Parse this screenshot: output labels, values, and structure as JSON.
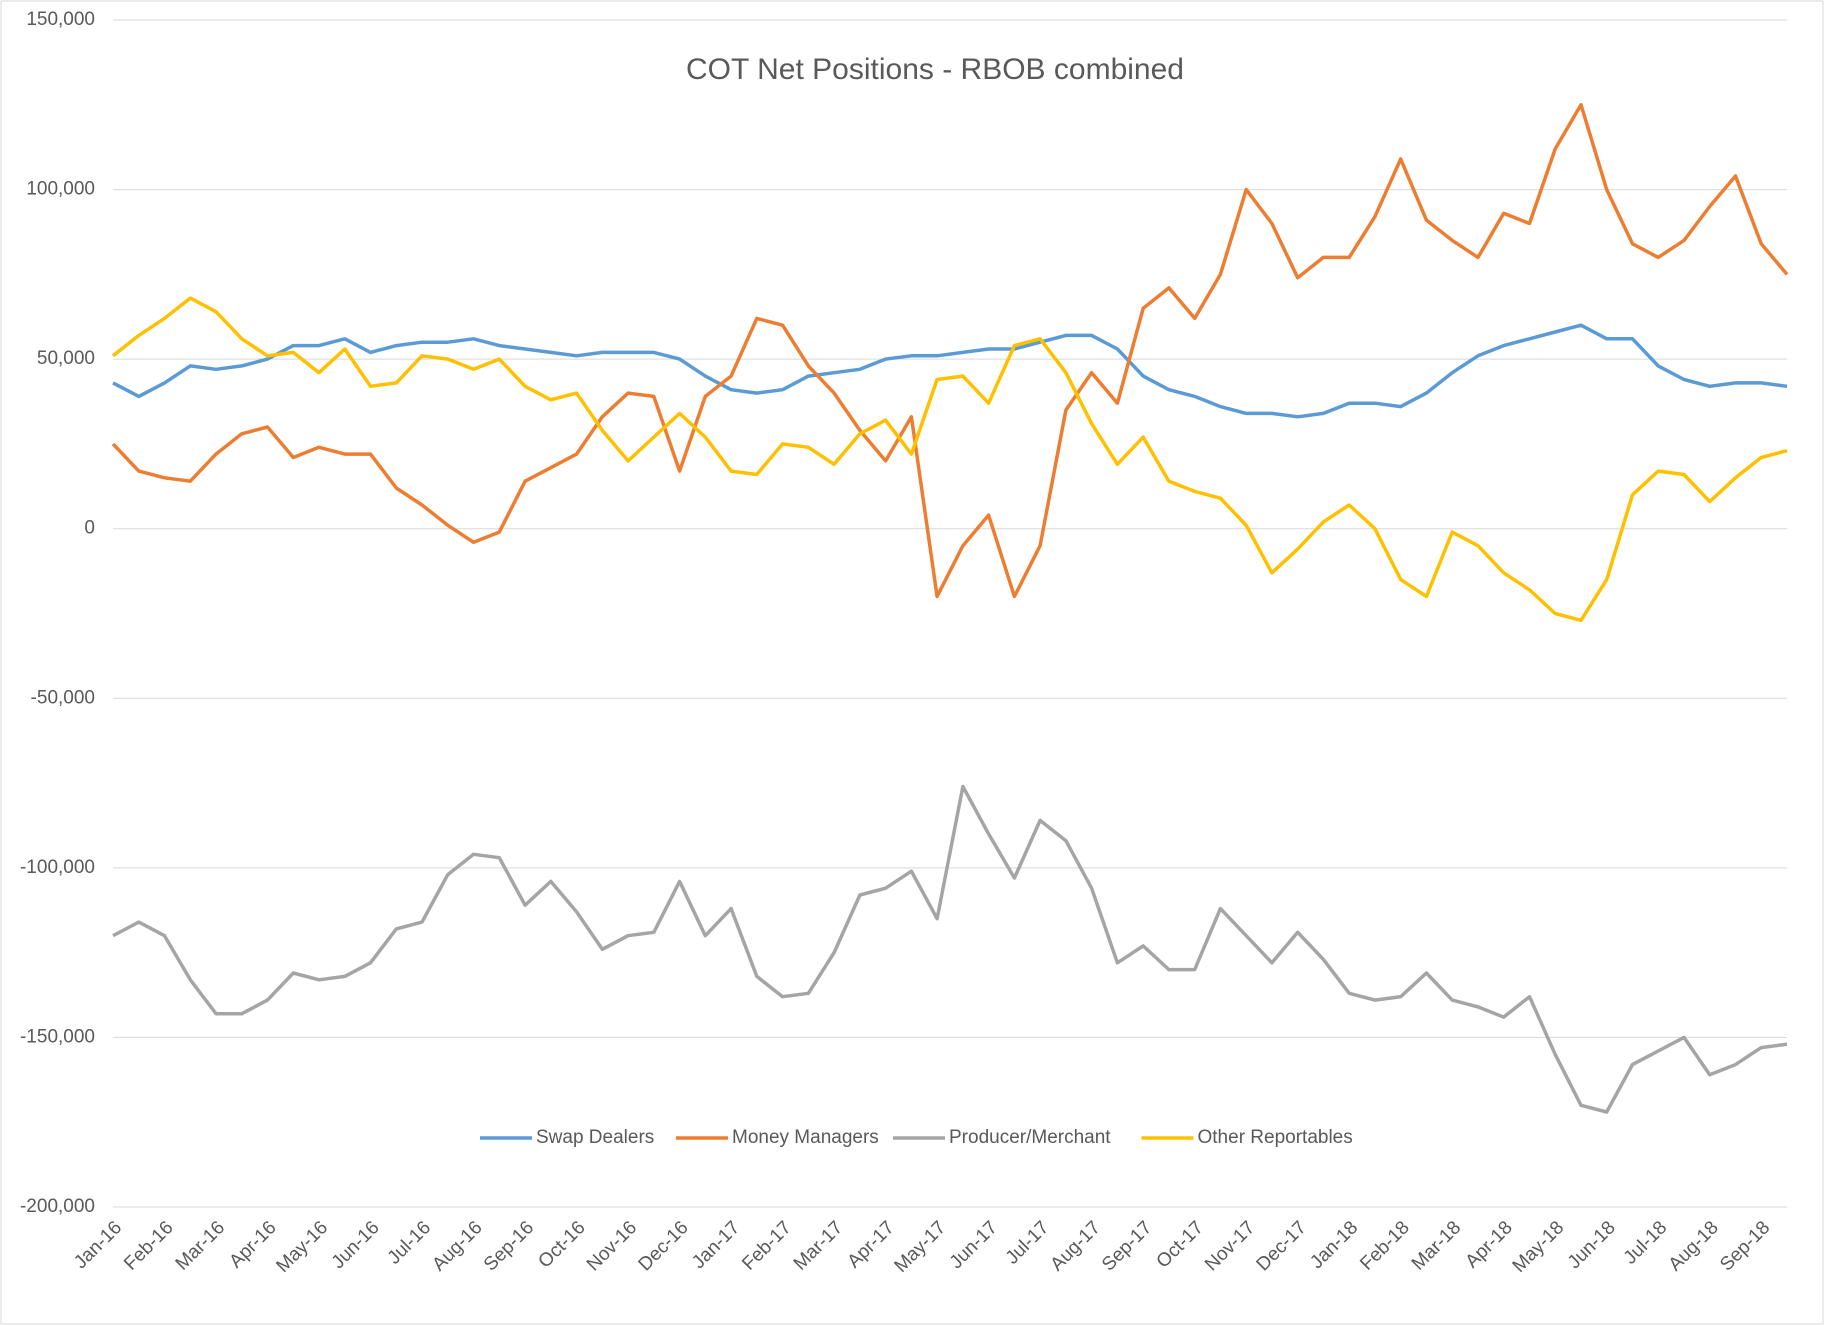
{
  "chart_data": {
    "type": "line",
    "title": "COT Net Positions - RBOB combined",
    "categories": [
      "Jan-16",
      null,
      "Feb-16",
      null,
      "Mar-16",
      null,
      "Apr-16",
      null,
      "May-16",
      null,
      "Jun-16",
      null,
      "Jul-16",
      null,
      "Aug-16",
      null,
      "Sep-16",
      null,
      "Oct-16",
      null,
      "Nov-16",
      null,
      "Dec-16",
      null,
      "Jan-17",
      null,
      "Feb-17",
      null,
      "Mar-17",
      null,
      "Apr-17",
      null,
      "May-17",
      null,
      "Jun-17",
      null,
      "Jul-17",
      null,
      "Aug-17",
      null,
      "Sep-17",
      null,
      "Oct-17",
      null,
      "Nov-17",
      null,
      "Dec-17",
      null,
      "Jan-18",
      null,
      "Feb-18",
      null,
      "Mar-18",
      null,
      "Apr-18",
      null,
      "May-18",
      null,
      "Jun-18",
      null,
      "Jul-18",
      null,
      "Aug-18",
      null,
      "Sep-18",
      null
    ],
    "series": [
      {
        "name": "Swap Dealers",
        "color": "#5b9bd5",
        "values": [
          43000,
          39000,
          43000,
          48000,
          47000,
          48000,
          50000,
          54000,
          54000,
          56000,
          52000,
          54000,
          55000,
          55000,
          56000,
          54000,
          53000,
          52000,
          51000,
          52000,
          52000,
          52000,
          50000,
          45000,
          41000,
          40000,
          41000,
          45000,
          46000,
          47000,
          50000,
          51000,
          51000,
          52000,
          53000,
          53000,
          55000,
          57000,
          57000,
          53000,
          45000,
          41000,
          39000,
          36000,
          34000,
          34000,
          33000,
          34000,
          37000,
          37000,
          36000,
          40000,
          46000,
          51000,
          54000,
          56000,
          58000,
          60000,
          56000,
          56000,
          48000,
          44000,
          42000,
          43000,
          43000,
          42000
        ]
      },
      {
        "name": "Money Managers",
        "color": "#ed7d31",
        "values": [
          25000,
          17000,
          15000,
          14000,
          22000,
          28000,
          30000,
          21000,
          24000,
          22000,
          22000,
          12000,
          7000,
          1000,
          -4000,
          -1000,
          14000,
          18000,
          22000,
          33000,
          40000,
          39000,
          17000,
          39000,
          45000,
          62000,
          60000,
          48000,
          40000,
          29000,
          20000,
          33000,
          -20000,
          -5000,
          4000,
          -20000,
          -5000,
          35000,
          46000,
          37000,
          65000,
          71000,
          62000,
          75000,
          100000,
          90000,
          74000,
          80000,
          80000,
          92000,
          109000,
          91000,
          85000,
          80000,
          93000,
          90000,
          112000,
          125000,
          100000,
          84000,
          80000,
          85000,
          95000,
          104000,
          84000,
          75000
        ]
      },
      {
        "name": "Producer/Merchant",
        "color": "#a5a5a5",
        "values": [
          -120000,
          -116000,
          -120000,
          -133000,
          -143000,
          -143000,
          -139000,
          -131000,
          -133000,
          -132000,
          -128000,
          -118000,
          -116000,
          -102000,
          -96000,
          -97000,
          -111000,
          -104000,
          -113000,
          -124000,
          -120000,
          -119000,
          -104000,
          -120000,
          -112000,
          -132000,
          -138000,
          -137000,
          -125000,
          -108000,
          -106000,
          -101000,
          -115000,
          -76000,
          -90000,
          -103000,
          -86000,
          -92000,
          -106000,
          -128000,
          -123000,
          -130000,
          -130000,
          -112000,
          -120000,
          -128000,
          -119000,
          -127000,
          -137000,
          -139000,
          -138000,
          -131000,
          -139000,
          -141000,
          -144000,
          -138000,
          -155000,
          -170000,
          -172000,
          -158000,
          -154000,
          -150000,
          -161000,
          -158000,
          -153000,
          -152000
        ]
      },
      {
        "name": "Other Reportables",
        "color": "#ffc000",
        "values": [
          51000,
          57000,
          62000,
          68000,
          64000,
          56000,
          51000,
          52000,
          46000,
          53000,
          42000,
          43000,
          51000,
          50000,
          47000,
          50000,
          42000,
          38000,
          40000,
          29000,
          20000,
          27000,
          34000,
          27000,
          17000,
          16000,
          25000,
          24000,
          19000,
          28000,
          32000,
          22000,
          44000,
          45000,
          37000,
          54000,
          56000,
          46000,
          31000,
          19000,
          27000,
          14000,
          11000,
          9000,
          1000,
          -13000,
          -6000,
          2000,
          7000,
          0,
          -15000,
          -20000,
          -1000,
          -5000,
          -13000,
          -18000,
          -25000,
          -27000,
          -15000,
          10000,
          17000,
          16000,
          8000,
          15000,
          21000,
          23000
        ]
      }
    ],
    "ylim": [
      -200000,
      150000
    ],
    "yticks": [
      {
        "value": -200000,
        "label": "-200,000"
      },
      {
        "value": -150000,
        "label": "-150,000"
      },
      {
        "value": -100000,
        "label": "-100,000"
      },
      {
        "value": -50000,
        "label": "-50,000"
      },
      0,
      {
        "value": 50000,
        "label": "50,000"
      },
      {
        "value": 100000,
        "label": "100,000"
      },
      {
        "value": 150000,
        "label": "150,000"
      }
    ],
    "grid": true,
    "legend": "bottom"
  }
}
